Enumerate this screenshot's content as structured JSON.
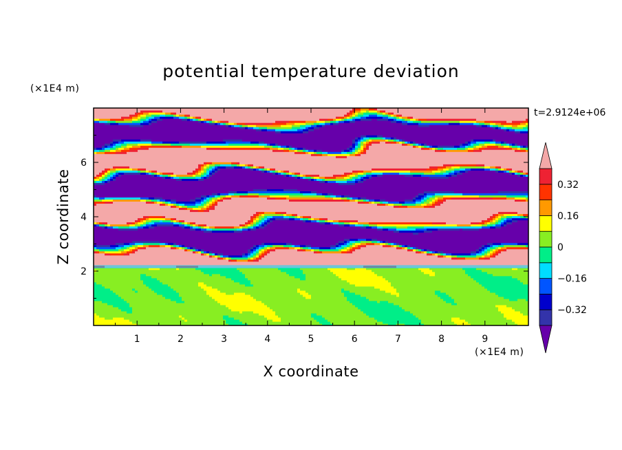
{
  "chart_data": {
    "type": "heatmap",
    "title": "potential temperature deviation",
    "xlabel": "X coordinate",
    "ylabel": "Z coordinate",
    "x_unit": "(×1E4 m)",
    "y_unit": "(×1E4 m)",
    "time_label": "t=2.9124e+06",
    "xlim": [
      0,
      10
    ],
    "ylim": [
      0,
      8
    ],
    "x_ticks": [
      "1",
      "2",
      "3",
      "4",
      "5",
      "6",
      "7",
      "8",
      "9"
    ],
    "y_ticks": [
      "2",
      "4",
      "6"
    ],
    "colorbar": {
      "levels": [
        -0.4,
        -0.32,
        -0.24,
        -0.16,
        -0.08,
        0,
        0.08,
        0.16,
        0.24,
        0.32,
        0.4
      ],
      "labels": [
        "0.32",
        "0.16",
        "0",
        "−0.16",
        "−0.32"
      ],
      "colors": [
        "#6600aa",
        "#3333aa",
        "#0000cc",
        "#0055ff",
        "#00ddff",
        "#00ee88",
        "#88ee22",
        "#ffff00",
        "#ff9900",
        "#ff3300",
        "#ee2233",
        "#f4a8a8"
      ],
      "extend": "both"
    },
    "field_description": {
      "lower_layer_z": [
        0,
        2.1
      ],
      "lower_layer_values": [
        0,
        0.08
      ],
      "upper_layer_z": [
        2.1,
        8
      ],
      "upper_layer_pattern": "alternating horizontal bands of values above 0.4 and below -0.4 with thin colored transitions"
    }
  }
}
